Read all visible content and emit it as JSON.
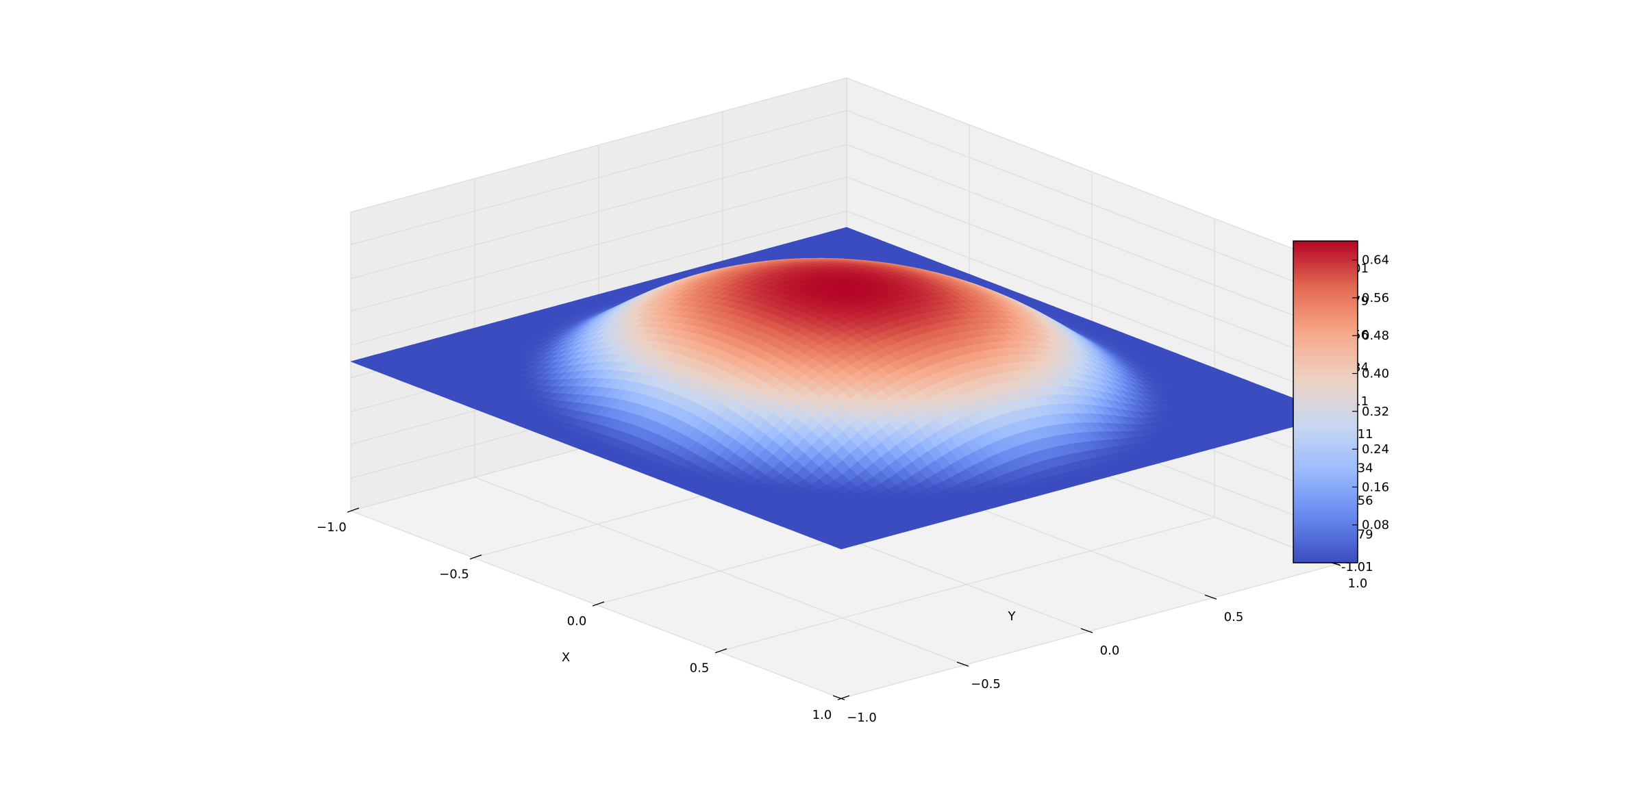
{
  "chart_data": {
    "type": "surface3d",
    "function": "bump",
    "xlabel": "X",
    "ylabel": "Y",
    "zlabel": "",
    "xlim": [
      -1.0,
      1.0
    ],
    "ylim": [
      -1.0,
      1.0
    ],
    "zlim": [
      -1.01,
      1.01
    ],
    "x_ticks": [
      "−1.0",
      "−0.5",
      "0.0",
      "0.5",
      "1.0"
    ],
    "y_ticks": [
      "−1.0",
      "−0.5",
      "0.0",
      "0.5",
      "1.0"
    ],
    "z_ticks": [
      "-1.01",
      "-0.79",
      "-0.56",
      "-0.34",
      "-0.11",
      "0.11",
      "0.34",
      "0.56",
      "0.79",
      "1.01"
    ],
    "z_tick_values": [
      -1.01,
      -0.79,
      -0.56,
      -0.34,
      -0.11,
      0.11,
      0.34,
      0.56,
      0.79,
      1.01
    ],
    "surface_peak": {
      "x": 0.0,
      "y": 0.0,
      "z": 0.68
    },
    "surface_floor_z": 0.0,
    "colormap": "coolwarm",
    "colormap_stops": [
      "#3b4cc0",
      "#6788ee",
      "#9abbff",
      "#c9d7f0",
      "#edd1c2",
      "#f7a889",
      "#e26952",
      "#b40426"
    ],
    "colorbar": {
      "range": [
        0.0,
        0.68
      ],
      "ticks": [
        "0.08",
        "0.16",
        "0.24",
        "0.32",
        "0.40",
        "0.48",
        "0.56",
        "0.64"
      ],
      "tick_values": [
        0.08,
        0.16,
        0.24,
        0.32,
        0.4,
        0.48,
        0.56,
        0.64
      ]
    },
    "grid": true
  }
}
